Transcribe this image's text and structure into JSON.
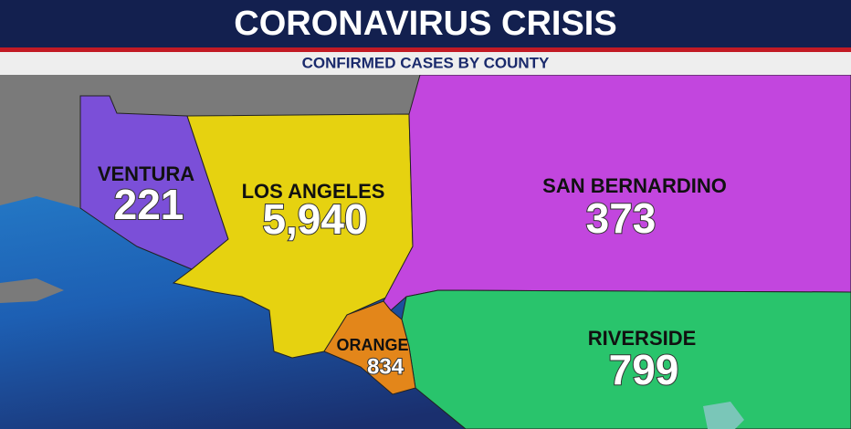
{
  "header": {
    "title": "CORONAVIRUS CRISIS",
    "subtitle": "CONFIRMED CASES BY COUNTY"
  },
  "counties": [
    {
      "name": "VENTURA",
      "cases": "221"
    },
    {
      "name": "LOS ANGELES",
      "cases": "5,940"
    },
    {
      "name": "SAN BERNARDINO",
      "cases": "373"
    },
    {
      "name": "RIVERSIDE",
      "cases": "799"
    },
    {
      "name": "ORANGE",
      "cases": "834"
    }
  ]
}
